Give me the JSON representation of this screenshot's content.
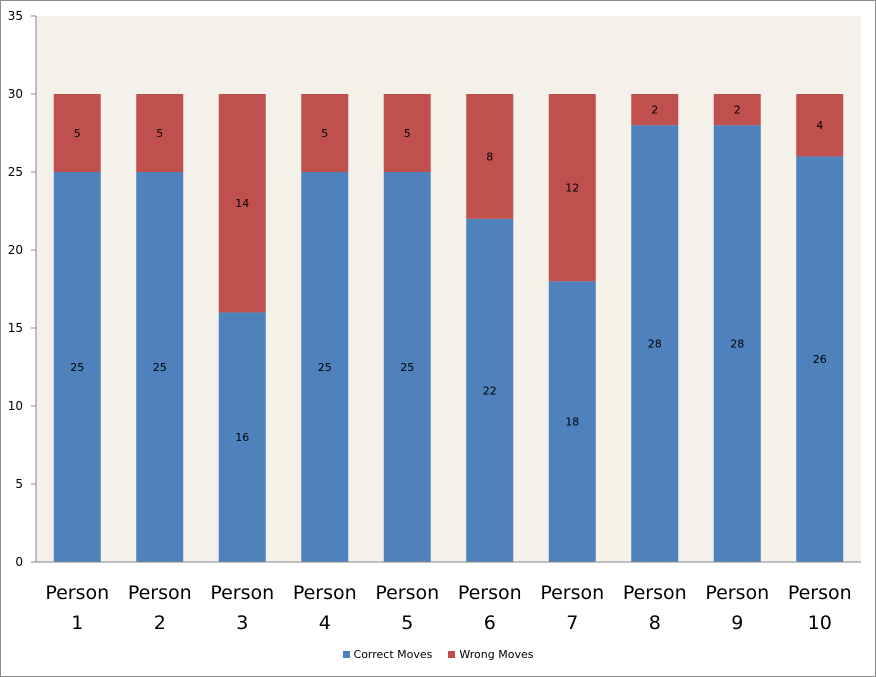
{
  "chart_data": {
    "type": "bar",
    "stacked": true,
    "categories": [
      [
        "Person",
        "1"
      ],
      [
        "Person",
        "2"
      ],
      [
        "Person",
        "3"
      ],
      [
        "Person",
        "4"
      ],
      [
        "Person",
        "5"
      ],
      [
        "Person",
        "6"
      ],
      [
        "Person",
        "7"
      ],
      [
        "Person",
        "8"
      ],
      [
        "Person",
        "9"
      ],
      [
        "Person",
        "10"
      ]
    ],
    "series": [
      {
        "name": "Correct Moves",
        "color": "#4f81bd",
        "values": [
          25,
          25,
          16,
          25,
          25,
          22,
          18,
          28,
          28,
          26
        ]
      },
      {
        "name": "Wrong Moves",
        "color": "#c0504d",
        "values": [
          5,
          5,
          14,
          5,
          5,
          8,
          12,
          2,
          2,
          4
        ]
      }
    ],
    "ylim": [
      0,
      35
    ],
    "yticks": [
      0,
      5,
      10,
      15,
      20,
      25,
      30,
      35
    ],
    "grid": false,
    "plot_background": "#f3f1e9",
    "legend": "bottom",
    "data_labels": true
  }
}
